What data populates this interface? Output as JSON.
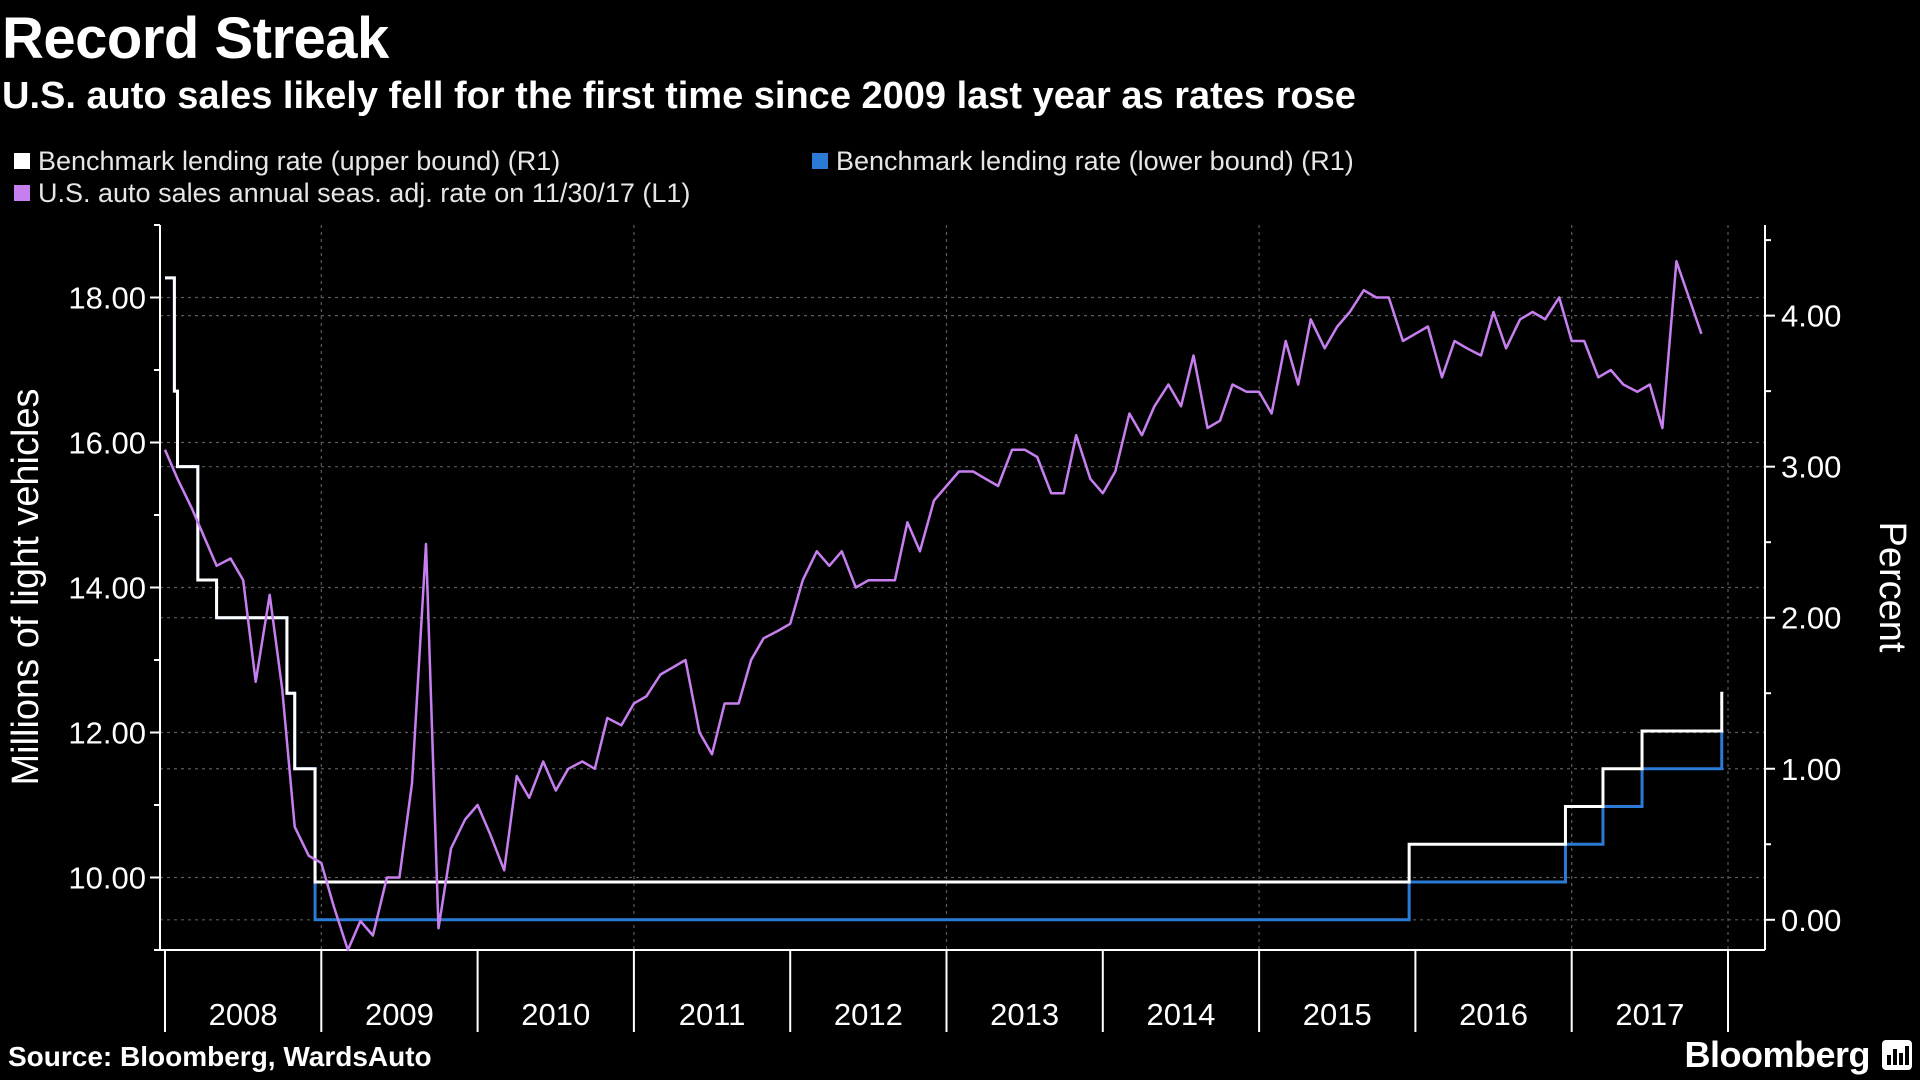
{
  "header": {
    "title": "Record Streak",
    "subtitle": "U.S. auto sales likely fell for the first time since 2009 last year as rates rose"
  },
  "footer": {
    "source": "Source: Bloomberg, WardsAuto",
    "brand": "Bloomberg"
  },
  "colors": {
    "background": "#000000",
    "upper": "#ffffff",
    "lower": "#2b7bd6",
    "sales": "#c77ff0",
    "grid": "#555555"
  },
  "chart_data": {
    "type": "line",
    "title": "Record Streak",
    "subtitle": "U.S. auto sales likely fell for the first time since 2009 last year as rates rose",
    "left_axis": {
      "label": "Millions of light vehicles",
      "ylim": [
        9.0,
        19.0
      ],
      "ticks": [
        10.0,
        12.0,
        14.0,
        16.0,
        18.0
      ],
      "tick_labels": [
        "10.00",
        "12.00",
        "14.00",
        "16.00",
        "18.00"
      ]
    },
    "right_axis": {
      "label": "Percent",
      "ylim": [
        -0.2,
        4.6
      ],
      "ticks": [
        0,
        1,
        2,
        3,
        4
      ],
      "tick_labels": [
        "0.00",
        "1.00",
        "2.00",
        "3.00",
        "4.00"
      ]
    },
    "x_axis": {
      "range": [
        2008.0,
        2018.0
      ],
      "tick_labels": [
        "2008",
        "2009",
        "2010",
        "2011",
        "2012",
        "2013",
        "2014",
        "2015",
        "2016",
        "2017"
      ]
    },
    "grid": true,
    "legend_position": "top-left",
    "series": [
      {
        "name": "Benchmark lending rate (upper bound) (R1)",
        "axis": "right",
        "color": "#ffffff",
        "step": true,
        "points": [
          [
            2008.0,
            4.25
          ],
          [
            2008.06,
            3.5
          ],
          [
            2008.08,
            3.0
          ],
          [
            2008.21,
            2.25
          ],
          [
            2008.33,
            2.0
          ],
          [
            2008.78,
            1.5
          ],
          [
            2008.83,
            1.0
          ],
          [
            2008.96,
            0.25
          ],
          [
            2015.96,
            0.5
          ],
          [
            2016.96,
            0.75
          ],
          [
            2017.2,
            1.0
          ],
          [
            2017.45,
            1.25
          ],
          [
            2017.96,
            1.5
          ],
          [
            2017.97,
            1.5
          ]
        ]
      },
      {
        "name": "Benchmark lending rate (lower bound) (R1)",
        "axis": "right",
        "color": "#2b7bd6",
        "step": true,
        "points": [
          [
            2008.0,
            4.25
          ],
          [
            2008.06,
            3.5
          ],
          [
            2008.08,
            3.0
          ],
          [
            2008.21,
            2.25
          ],
          [
            2008.33,
            2.0
          ],
          [
            2008.78,
            1.5
          ],
          [
            2008.83,
            1.0
          ],
          [
            2008.96,
            0.0
          ],
          [
            2015.96,
            0.25
          ],
          [
            2016.96,
            0.5
          ],
          [
            2017.2,
            0.75
          ],
          [
            2017.45,
            1.0
          ],
          [
            2017.96,
            1.25
          ],
          [
            2017.97,
            1.25
          ]
        ]
      },
      {
        "name": "U.S. auto sales annual seas. adj. rate on 11/30/17 (L1)",
        "axis": "left",
        "color": "#c77ff0",
        "step": false,
        "points": [
          [
            2008.0,
            15.9
          ],
          [
            2008.08,
            15.5
          ],
          [
            2008.17,
            15.1
          ],
          [
            2008.25,
            14.7
          ],
          [
            2008.33,
            14.3
          ],
          [
            2008.42,
            14.4
          ],
          [
            2008.5,
            14.1
          ],
          [
            2008.58,
            12.7
          ],
          [
            2008.67,
            13.9
          ],
          [
            2008.75,
            12.6
          ],
          [
            2008.83,
            10.7
          ],
          [
            2008.92,
            10.3
          ],
          [
            2009.0,
            10.2
          ],
          [
            2009.08,
            9.6
          ],
          [
            2009.17,
            9.0
          ],
          [
            2009.25,
            9.4
          ],
          [
            2009.33,
            9.2
          ],
          [
            2009.42,
            10.0
          ],
          [
            2009.5,
            10.0
          ],
          [
            2009.58,
            11.3
          ],
          [
            2009.67,
            14.6
          ],
          [
            2009.75,
            9.3
          ],
          [
            2009.83,
            10.4
          ],
          [
            2009.92,
            10.8
          ],
          [
            2010.0,
            11.0
          ],
          [
            2010.08,
            10.6
          ],
          [
            2010.17,
            10.1
          ],
          [
            2010.25,
            11.4
          ],
          [
            2010.33,
            11.1
          ],
          [
            2010.42,
            11.6
          ],
          [
            2010.5,
            11.2
          ],
          [
            2010.58,
            11.5
          ],
          [
            2010.67,
            11.6
          ],
          [
            2010.75,
            11.5
          ],
          [
            2010.83,
            12.2
          ],
          [
            2010.92,
            12.1
          ],
          [
            2011.0,
            12.4
          ],
          [
            2011.08,
            12.5
          ],
          [
            2011.17,
            12.8
          ],
          [
            2011.25,
            12.9
          ],
          [
            2011.33,
            13.0
          ],
          [
            2011.42,
            12.0
          ],
          [
            2011.5,
            11.7
          ],
          [
            2011.58,
            12.4
          ],
          [
            2011.67,
            12.4
          ],
          [
            2011.75,
            13.0
          ],
          [
            2011.83,
            13.3
          ],
          [
            2011.92,
            13.4
          ],
          [
            2012.0,
            13.5
          ],
          [
            2012.08,
            14.1
          ],
          [
            2012.17,
            14.5
          ],
          [
            2012.25,
            14.3
          ],
          [
            2012.33,
            14.5
          ],
          [
            2012.42,
            14.0
          ],
          [
            2012.5,
            14.1
          ],
          [
            2012.58,
            14.1
          ],
          [
            2012.67,
            14.1
          ],
          [
            2012.75,
            14.9
          ],
          [
            2012.83,
            14.5
          ],
          [
            2012.92,
            15.2
          ],
          [
            2013.0,
            15.4
          ],
          [
            2013.08,
            15.6
          ],
          [
            2013.17,
            15.6
          ],
          [
            2013.25,
            15.5
          ],
          [
            2013.33,
            15.4
          ],
          [
            2013.42,
            15.9
          ],
          [
            2013.5,
            15.9
          ],
          [
            2013.58,
            15.8
          ],
          [
            2013.67,
            15.3
          ],
          [
            2013.75,
            15.3
          ],
          [
            2013.83,
            16.1
          ],
          [
            2013.92,
            15.5
          ],
          [
            2014.0,
            15.3
          ],
          [
            2014.08,
            15.6
          ],
          [
            2014.17,
            16.4
          ],
          [
            2014.25,
            16.1
          ],
          [
            2014.33,
            16.5
          ],
          [
            2014.42,
            16.8
          ],
          [
            2014.5,
            16.5
          ],
          [
            2014.58,
            17.2
          ],
          [
            2014.67,
            16.2
          ],
          [
            2014.75,
            16.3
          ],
          [
            2014.83,
            16.8
          ],
          [
            2014.92,
            16.7
          ],
          [
            2015.0,
            16.7
          ],
          [
            2015.08,
            16.4
          ],
          [
            2015.17,
            17.4
          ],
          [
            2015.25,
            16.8
          ],
          [
            2015.33,
            17.7
          ],
          [
            2015.42,
            17.3
          ],
          [
            2015.5,
            17.6
          ],
          [
            2015.58,
            17.8
          ],
          [
            2015.67,
            18.1
          ],
          [
            2015.75,
            18.0
          ],
          [
            2015.83,
            18.0
          ],
          [
            2015.92,
            17.4
          ],
          [
            2016.0,
            17.5
          ],
          [
            2016.08,
            17.6
          ],
          [
            2016.17,
            16.9
          ],
          [
            2016.25,
            17.4
          ],
          [
            2016.33,
            17.3
          ],
          [
            2016.42,
            17.2
          ],
          [
            2016.5,
            17.8
          ],
          [
            2016.58,
            17.3
          ],
          [
            2016.67,
            17.7
          ],
          [
            2016.75,
            17.8
          ],
          [
            2016.83,
            17.7
          ],
          [
            2016.92,
            18.0
          ],
          [
            2017.0,
            17.4
          ],
          [
            2017.08,
            17.4
          ],
          [
            2017.17,
            16.9
          ],
          [
            2017.25,
            17.0
          ],
          [
            2017.33,
            16.8
          ],
          [
            2017.42,
            16.7
          ],
          [
            2017.5,
            16.8
          ],
          [
            2017.58,
            16.2
          ],
          [
            2017.67,
            18.5
          ],
          [
            2017.75,
            18.0
          ],
          [
            2017.83,
            17.5
          ]
        ]
      }
    ]
  }
}
